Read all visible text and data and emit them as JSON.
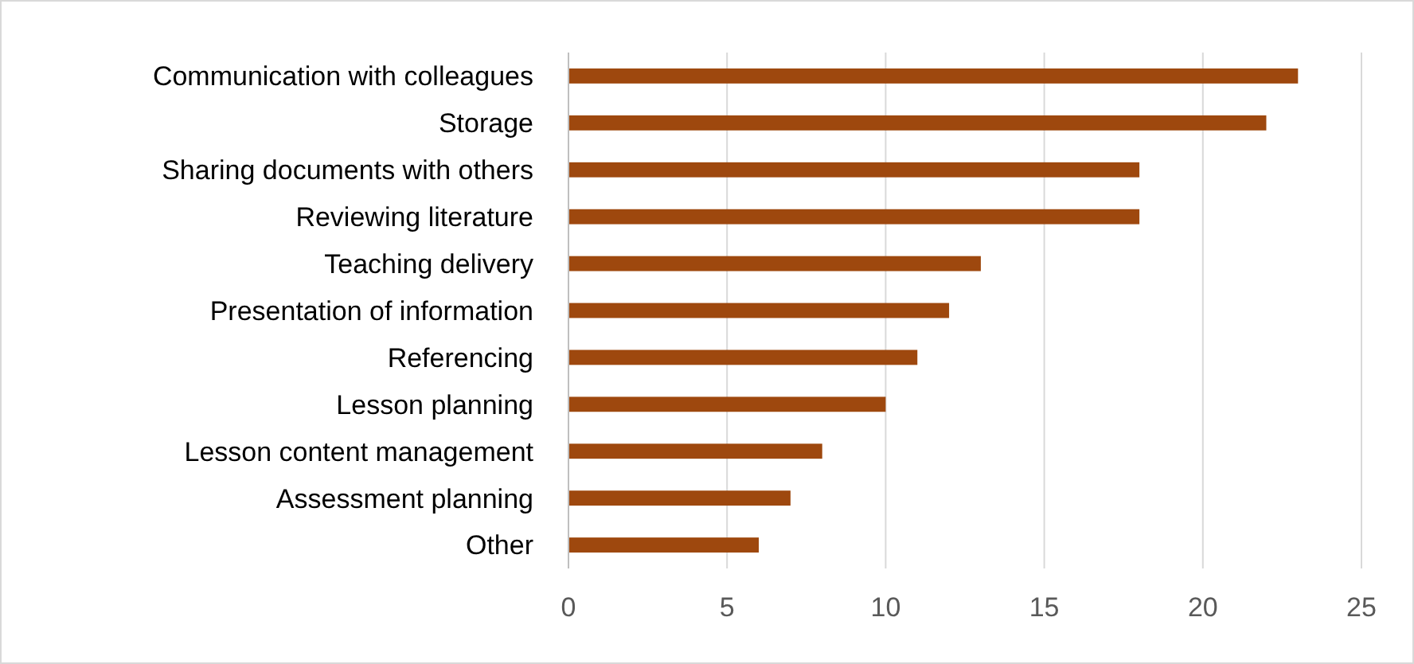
{
  "chart_data": {
    "type": "bar",
    "orientation": "horizontal",
    "categories": [
      "Communication with colleagues",
      "Storage",
      "Sharing documents with others",
      "Reviewing literature",
      "Teaching delivery",
      "Presentation of information",
      "Referencing",
      "Lesson planning",
      "Lesson content management",
      "Assessment planning",
      "Other"
    ],
    "values": [
      23,
      22,
      18,
      18,
      13,
      12,
      11,
      10,
      8,
      7,
      6
    ],
    "color": "#9e480e",
    "xlim": [
      0,
      25
    ],
    "xticks": [
      0,
      5,
      10,
      15,
      20,
      25
    ],
    "grid": "x"
  }
}
